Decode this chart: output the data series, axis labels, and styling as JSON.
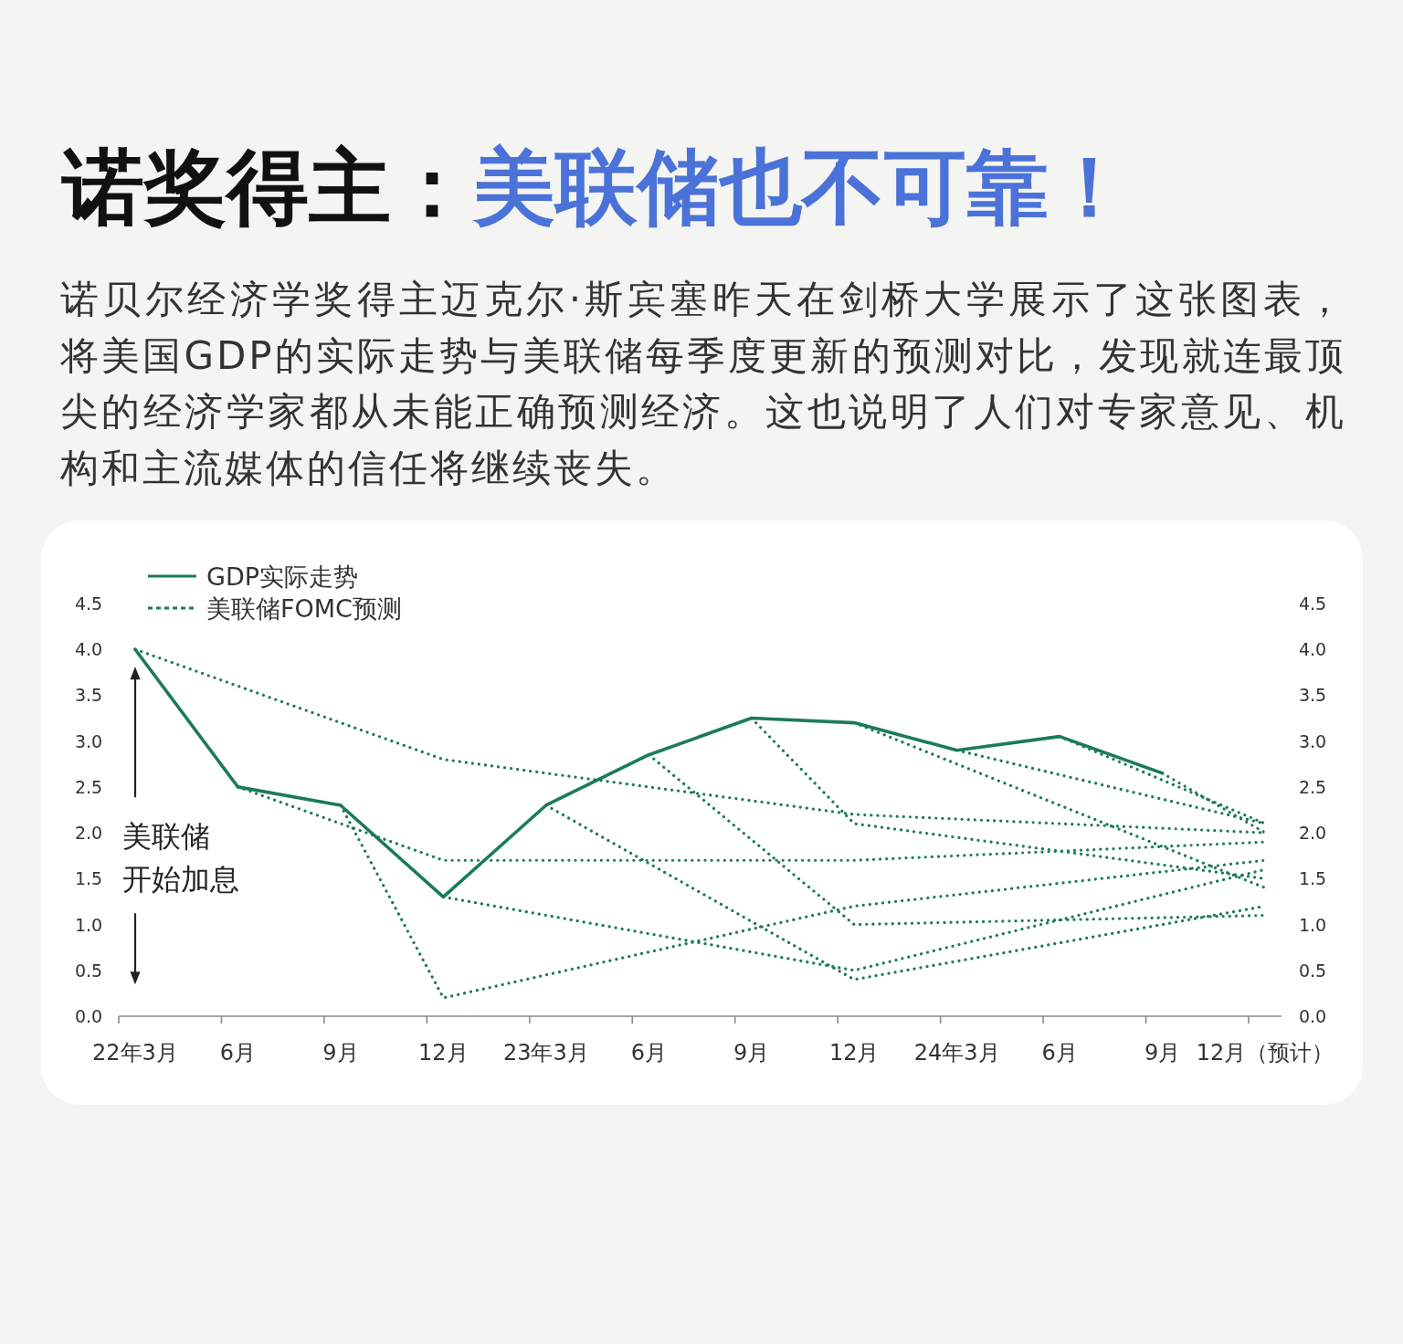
{
  "chart_data": {
    "type": "line",
    "title": "诺奖得主：**美联储也不可靠！**",
    "subtitle": "诺贝尔经济学奖得主迈克尔·斯宾塞昨天在剑桥大学展示了这张图表，将美国GDP的实际走势与美联储每季度更新的预测对比，发现就连最顶尖的经济学家都从未能正确预测经济。这也说明了人们对专家意见、机构和主流媒体的信任将继续丧失。",
    "legend": "top left",
    "categories": [
      "22年3月",
      "6月",
      "9月",
      "12月",
      "23年3月",
      "6月",
      "9月",
      "12月",
      "24年3月",
      "6月",
      "9月",
      "12月（预计）"
    ],
    "ylim": [
      0,
      4.5
    ],
    "yticks": [
      {
        "value": 0,
        "label": "0.0"
      },
      0.5,
      {
        "value": 1,
        "label": "1.0"
      },
      1.5,
      {
        "value": 2,
        "label": "2.0"
      },
      2.5,
      {
        "value": 3,
        "label": "3.0"
      },
      3.5,
      {
        "value": 4,
        "label": "4.0"
      },
      4.5
    ],
    "y2lim": [
      0,
      4.5
    ],
    "y2ticks": [
      {
        "value": 0,
        "label": "0.0"
      },
      0.5,
      {
        "value": 1,
        "label": "1.0"
      },
      1.5,
      {
        "value": 2,
        "label": "2.0"
      },
      2.5,
      {
        "value": 3,
        "label": "3.0"
      },
      3.5,
      {
        "value": 4,
        "label": "4.0"
      },
      4.5
    ],
    "annotations": [
      "美联储开始加息"
    ],
    "series": [
      {
        "name": "GDP实际走势",
        "color": "#1b7a5d",
        "line_style": "solid",
        "values": [
          4.0,
          2.5,
          2.3,
          1.3,
          2.3,
          2.85,
          3.25,
          3.2,
          2.9,
          3.05,
          2.65,
          null
        ]
      },
      {
        "name": "美联储FOMC预测",
        "color": "#1b7a5d",
        "line_style": "dotted",
        "values": [
          4.0,
          null,
          null,
          2.8,
          null,
          null,
          null,
          2.2,
          null,
          null,
          null,
          2.0
        ]
      },
      {
        "color": "#1b7a5d",
        "line_style": "dotted",
        "values": [
          null,
          2.5,
          null,
          1.7,
          null,
          null,
          null,
          1.7,
          null,
          null,
          null,
          1.9
        ]
      },
      {
        "color": "#1b7a5d",
        "line_style": "dotted",
        "values": [
          null,
          null,
          2.3,
          0.2,
          null,
          null,
          null,
          1.2,
          null,
          null,
          null,
          1.7
        ]
      },
      {
        "color": "#1b7a5d",
        "line_style": "dotted",
        "values": [
          null,
          null,
          null,
          1.3,
          null,
          null,
          null,
          0.5,
          null,
          null,
          null,
          1.6
        ]
      },
      {
        "color": "#1b7a5d",
        "line_style": "dotted",
        "values": [
          null,
          null,
          null,
          null,
          2.3,
          null,
          null,
          0.4,
          null,
          null,
          null,
          1.2
        ]
      },
      {
        "color": "#1b7a5d",
        "line_style": "dotted",
        "values": [
          null,
          null,
          null,
          null,
          null,
          2.85,
          null,
          1.0,
          null,
          null,
          null,
          1.1
        ]
      },
      {
        "color": "#1b7a5d",
        "line_style": "dotted",
        "values": [
          null,
          null,
          null,
          null,
          null,
          null,
          3.25,
          2.1,
          null,
          null,
          null,
          1.5
        ]
      },
      {
        "color": "#1b7a5d",
        "line_style": "dotted",
        "values": [
          null,
          null,
          null,
          null,
          null,
          null,
          null,
          3.2,
          null,
          null,
          null,
          1.4
        ]
      },
      {
        "color": "#1b7a5d",
        "line_style": "dotted",
        "values": [
          null,
          null,
          null,
          null,
          null,
          null,
          null,
          null,
          2.9,
          null,
          null,
          2.1
        ]
      },
      {
        "color": "#1b7a5d",
        "line_style": "dotted",
        "values": [
          null,
          null,
          null,
          null,
          null,
          null,
          null,
          null,
          null,
          3.05,
          null,
          2.1
        ]
      },
      {
        "color": "#1b7a5d",
        "line_style": "dotted",
        "values": [
          null,
          null,
          null,
          null,
          null,
          null,
          null,
          null,
          null,
          null,
          2.65,
          2.0
        ]
      }
    ]
  }
}
